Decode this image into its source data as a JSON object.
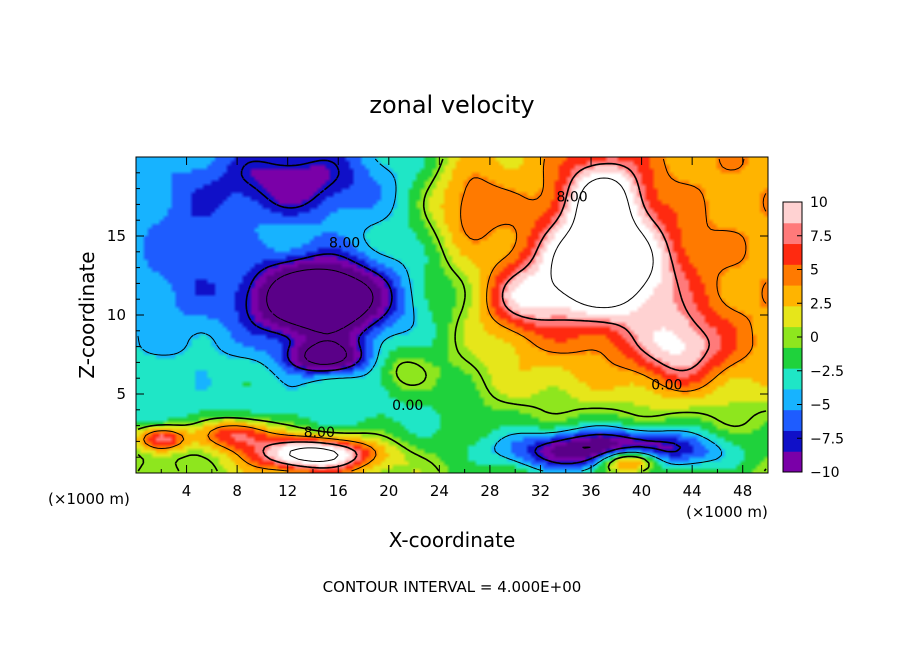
{
  "chart_data": {
    "type": "heatmap",
    "title": "zonal velocity",
    "xlabel": "X-coordinate",
    "ylabel": "Z-coordinate",
    "x_unit_left": "(×1000 m)",
    "x_unit_right": "(×1000 m)",
    "footer": "CONTOUR INTERVAL = 4.000E+00",
    "xlim": [
      0,
      50
    ],
    "ylim": [
      0,
      20
    ],
    "x_ticks": [
      4,
      8,
      12,
      16,
      20,
      24,
      28,
      32,
      36,
      40,
      44,
      48
    ],
    "y_ticks": [
      5,
      10,
      15
    ],
    "colorbar": {
      "range": [
        -10,
        10
      ],
      "ticks": [
        10,
        7.5,
        5,
        2.5,
        0,
        -2.5,
        -5,
        -7.5,
        -10
      ],
      "tick_labels": [
        "10",
        "7.5",
        "5",
        "2.5",
        "0",
        "−2.5",
        "−5",
        "−7.5",
        "−10"
      ],
      "colors": [
        "#7a00a8",
        "#1010c8",
        "#1e5cff",
        "#17b3ff",
        "#1fe6c6",
        "#1fd23c",
        "#8ee61e",
        "#e6e61a",
        "#ffb400",
        "#ff7a00",
        "#ff2a10",
        "#ff7a7a",
        "#ffd2d2"
      ]
    },
    "contour_labels": [
      {
        "text": "8.00",
        "x": 14.5,
        "z": 2.6
      },
      {
        "text": "0.00",
        "x": 21.5,
        "z": 4.3
      },
      {
        "text": "0.00",
        "x": 42.0,
        "z": 5.6
      },
      {
        "text": "8.00",
        "x": 34.5,
        "z": 17.5
      },
      {
        "text": "8.00",
        "x": 16.5,
        "z": 14.6
      }
    ],
    "field_features": [
      {
        "x": 14.5,
        "z": 11.0,
        "sx": 5.2,
        "sz": 2.4,
        "amp": -16
      },
      {
        "x": 12.5,
        "z": 18.5,
        "sx": 6.5,
        "sz": 2.5,
        "amp": -6
      },
      {
        "x": 15.0,
        "z": 7.3,
        "sx": 3.0,
        "sz": 1.0,
        "amp": -10
      },
      {
        "x": 4.0,
        "z": 14.0,
        "sx": 4.0,
        "sz": 5.0,
        "amp": -3
      },
      {
        "x": 37.0,
        "z": 13.0,
        "sx": 5.0,
        "sz": 3.2,
        "amp": 15
      },
      {
        "x": 37.0,
        "z": 17.5,
        "sx": 3.0,
        "sz": 2.5,
        "amp": 10
      },
      {
        "x": 43.0,
        "z": 8.0,
        "sx": 3.5,
        "sz": 2.5,
        "amp": 7
      },
      {
        "x": 30.5,
        "z": 11.0,
        "sx": 3.0,
        "sz": 2.0,
        "amp": 6
      },
      {
        "x": 14.0,
        "z": 1.2,
        "sx": 4.8,
        "sz": 1.1,
        "amp": 15
      },
      {
        "x": 8.0,
        "z": 2.5,
        "sx": 3.0,
        "sz": 1.0,
        "amp": 9
      },
      {
        "x": 2.0,
        "z": 2.2,
        "sx": 2.0,
        "sz": 0.8,
        "amp": 10
      },
      {
        "x": 37.5,
        "z": 1.4,
        "sx": 8.0,
        "sz": 1.3,
        "amp": -14
      },
      {
        "x": 39.0,
        "z": 0.8,
        "sx": 2.5,
        "sz": 0.8,
        "amp": 14
      },
      {
        "x": 21.0,
        "z": 6.5,
        "sx": 2.0,
        "sz": 1.5,
        "amp": 3
      },
      {
        "x": 26.0,
        "z": 17.0,
        "sx": 3.0,
        "sz": 3.0,
        "amp": 5
      }
    ]
  }
}
